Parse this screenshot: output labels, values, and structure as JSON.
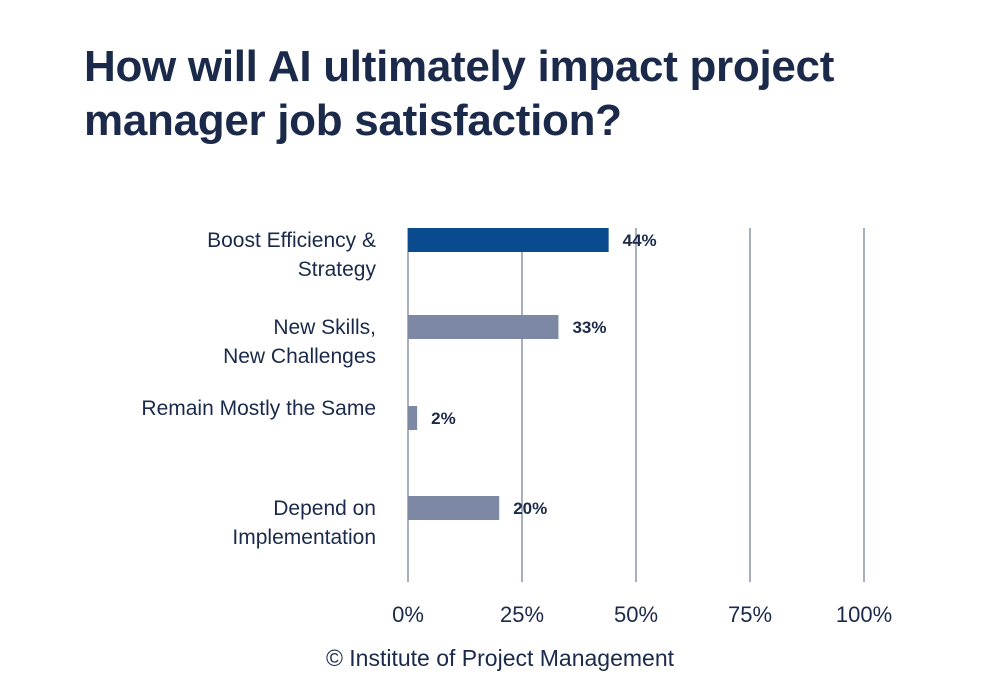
{
  "title": "How will AI ultimately impact project manager job satisfaction?",
  "footer": "© Institute of Project Management",
  "colors": {
    "highlight": "#0a4a8e",
    "bar": "#7d88a4",
    "grid": "#8c95a8",
    "text": "#1b2a4a"
  },
  "chart_data": {
    "type": "bar",
    "orientation": "horizontal",
    "categories": [
      [
        "Boost Efficiency &",
        "Strategy"
      ],
      [
        "New Skills,",
        "New Challenges"
      ],
      [
        "Remain Mostly the Same"
      ],
      [
        "Depend on",
        "Implementation"
      ]
    ],
    "values": [
      44,
      33,
      2,
      20
    ],
    "value_labels": [
      "44%",
      "33%",
      "2%",
      "20%"
    ],
    "highlight_index": 0,
    "xlim": [
      0,
      100
    ],
    "xticks": [
      0,
      25,
      50,
      75,
      100
    ],
    "xtick_labels": [
      "0%",
      "25%",
      "50%",
      "75%",
      "100%"
    ],
    "grid": true
  }
}
